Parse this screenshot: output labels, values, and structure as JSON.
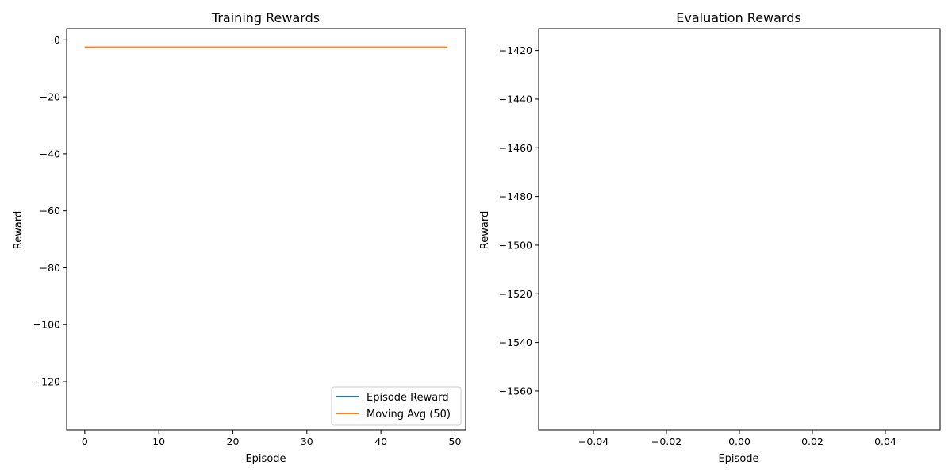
{
  "chart_data": [
    {
      "type": "line",
      "title": "Training Rewards",
      "xlabel": "Episode",
      "ylabel": "Reward",
      "xlim": [
        -2.45,
        51.45
      ],
      "ylim": [
        -137,
        4
      ],
      "xticks": [
        0,
        10,
        20,
        30,
        40,
        50
      ],
      "xtick_labels": [
        "0",
        "10",
        "20",
        "30",
        "40",
        "50"
      ],
      "yticks": [
        0,
        -20,
        -40,
        -60,
        -80,
        -100,
        -120
      ],
      "ytick_labels": [
        "0",
        "−20",
        "−40",
        "−60",
        "−80",
        "−100",
        "−120"
      ],
      "grid": false,
      "legend_position": "bottom-right",
      "series": [
        {
          "name": "Episode Reward",
          "color": "#1f77b4",
          "x": [
            0,
            49
          ],
          "y": [
            -2.6,
            -2.6
          ]
        },
        {
          "name": "Moving Avg (50)",
          "color": "#ff7f0e",
          "x": [
            0,
            49
          ],
          "y": [
            -2.6,
            -2.6
          ]
        }
      ]
    },
    {
      "type": "line",
      "title": "Evaluation Rewards",
      "xlabel": "Episode",
      "ylabel": "Reward",
      "xlim": [
        -0.055,
        0.055
      ],
      "ylim": [
        -1576,
        -1411
      ],
      "xticks": [
        -0.04,
        -0.02,
        0.0,
        0.02,
        0.04
      ],
      "xtick_labels": [
        "−0.04",
        "−0.02",
        "0.00",
        "0.02",
        "0.04"
      ],
      "yticks": [
        -1420,
        -1440,
        -1460,
        -1480,
        -1500,
        -1520,
        -1540,
        -1560
      ],
      "ytick_labels": [
        "−1420",
        "−1440",
        "−1460",
        "−1480",
        "−1500",
        "−1520",
        "−1540",
        "−1560"
      ],
      "grid": false,
      "series": []
    }
  ]
}
